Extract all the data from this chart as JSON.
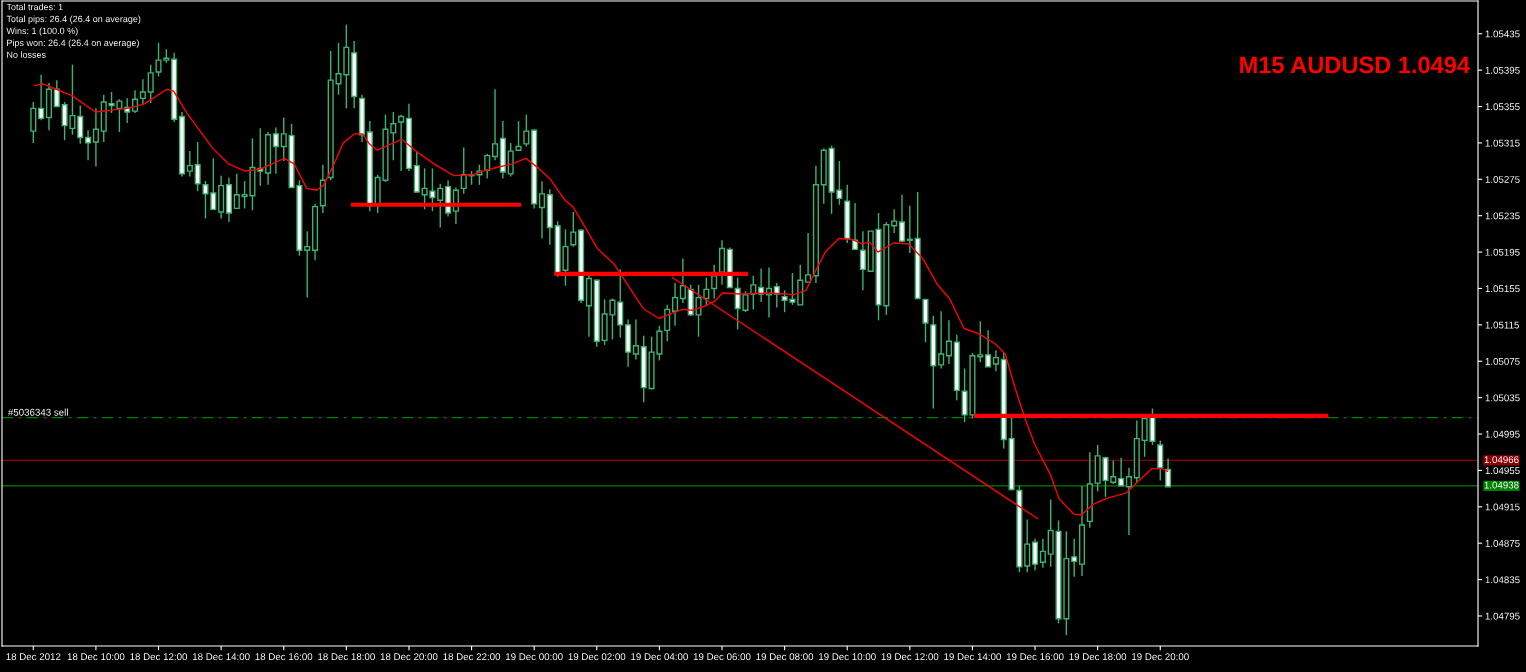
{
  "chart_data": {
    "type": "candlestick",
    "title": "M15 AUDUSD 1.0494",
    "annotations": [
      "Total trades: 1",
      "Total pips: 26.4 (26.4 on average)",
      "Wins: 1 (100.0 %)",
      "Pips won: 26.4 (26.4 on average)",
      "No losses"
    ],
    "color": "#3cb371",
    "x": [
      "2012-12-18T08:00",
      "2012-12-18T08:15",
      "2012-12-18T08:30",
      "2012-12-18T08:45",
      "2012-12-18T09:00",
      "2012-12-18T09:15",
      "2012-12-18T09:30",
      "2012-12-18T09:45",
      "2012-12-18T10:00",
      "2012-12-18T10:15",
      "2012-12-18T10:30",
      "2012-12-18T10:45",
      "2012-12-18T11:00",
      "2012-12-18T11:15",
      "2012-12-18T11:30",
      "2012-12-18T11:45",
      "2012-12-18T12:00",
      "2012-12-18T12:15",
      "2012-12-18T12:30",
      "2012-12-18T12:45",
      "2012-12-18T13:00",
      "2012-12-18T13:15",
      "2012-12-18T13:30",
      "2012-12-18T13:45",
      "2012-12-18T14:00",
      "2012-12-18T14:15",
      "2012-12-18T14:30",
      "2012-12-18T14:45",
      "2012-12-18T15:00",
      "2012-12-18T15:15",
      "2012-12-18T15:30",
      "2012-12-18T15:45",
      "2012-12-18T16:00",
      "2012-12-18T16:15",
      "2012-12-18T16:30",
      "2012-12-18T16:45",
      "2012-12-18T17:00",
      "2012-12-18T17:15",
      "2012-12-18T17:30",
      "2012-12-18T17:45",
      "2012-12-18T18:00",
      "2012-12-18T18:15",
      "2012-12-18T18:30",
      "2012-12-18T18:45",
      "2012-12-18T19:00",
      "2012-12-18T19:15",
      "2012-12-18T19:30",
      "2012-12-18T19:45",
      "2012-12-18T20:00",
      "2012-12-18T20:15",
      "2012-12-18T20:30",
      "2012-12-18T20:45",
      "2012-12-18T21:00",
      "2012-12-18T21:15",
      "2012-12-18T21:30",
      "2012-12-18T21:45",
      "2012-12-18T22:00",
      "2012-12-18T22:15",
      "2012-12-18T22:30",
      "2012-12-18T22:45",
      "2012-12-18T23:00",
      "2012-12-18T23:15",
      "2012-12-18T23:30",
      "2012-12-18T23:45",
      "2012-12-19T00:00",
      "2012-12-19T00:15",
      "2012-12-19T00:30",
      "2012-12-19T00:45",
      "2012-12-19T01:00",
      "2012-12-19T01:15",
      "2012-12-19T01:30",
      "2012-12-19T01:45",
      "2012-12-19T02:00",
      "2012-12-19T02:15",
      "2012-12-19T02:30",
      "2012-12-19T02:45",
      "2012-12-19T03:00",
      "2012-12-19T03:15",
      "2012-12-19T03:30",
      "2012-12-19T03:45",
      "2012-12-19T04:00",
      "2012-12-19T04:15",
      "2012-12-19T04:30",
      "2012-12-19T04:45",
      "2012-12-19T05:00",
      "2012-12-19T05:15",
      "2012-12-19T05:30",
      "2012-12-19T05:45",
      "2012-12-19T06:00",
      "2012-12-19T06:15",
      "2012-12-19T06:30",
      "2012-12-19T06:45",
      "2012-12-19T07:00",
      "2012-12-19T07:15",
      "2012-12-19T07:30",
      "2012-12-19T07:45",
      "2012-12-19T08:00",
      "2012-12-19T08:15",
      "2012-12-19T08:30",
      "2012-12-19T08:45",
      "2012-12-19T09:00",
      "2012-12-19T09:15",
      "2012-12-19T09:30",
      "2012-12-19T09:45",
      "2012-12-19T10:00",
      "2012-12-19T10:15",
      "2012-12-19T10:30",
      "2012-12-19T10:45",
      "2012-12-19T11:00",
      "2012-12-19T11:15",
      "2012-12-19T11:30",
      "2012-12-19T11:45",
      "2012-12-19T12:00",
      "2012-12-19T12:15",
      "2012-12-19T12:30",
      "2012-12-19T12:45",
      "2012-12-19T13:00",
      "2012-12-19T13:15",
      "2012-12-19T13:30",
      "2012-12-19T13:45",
      "2012-12-19T14:00",
      "2012-12-19T14:15",
      "2012-12-19T14:30",
      "2012-12-19T14:45",
      "2012-12-19T15:00",
      "2012-12-19T15:15",
      "2012-12-19T15:30",
      "2012-12-19T15:45",
      "2012-12-19T16:00",
      "2012-12-19T16:15",
      "2012-12-19T16:30",
      "2012-12-19T16:45",
      "2012-12-19T17:00",
      "2012-12-19T17:15",
      "2012-12-19T17:30",
      "2012-12-19T17:45",
      "2012-12-19T18:00",
      "2012-12-19T18:15",
      "2012-12-19T18:30",
      "2012-12-19T18:45",
      "2012-12-19T19:00",
      "2012-12-19T19:15",
      "2012-12-19T19:30",
      "2012-12-19T19:45",
      "2012-12-19T20:00",
      "2012-12-19T20:15"
    ],
    "ohlc": [
      [
        1.05328,
        1.0536,
        1.05315,
        1.05353
      ],
      [
        1.05353,
        1.0539,
        1.0534,
        1.05342
      ],
      [
        1.05343,
        1.05381,
        1.05329,
        1.05374
      ],
      [
        1.05374,
        1.05384,
        1.05355,
        1.05355
      ],
      [
        1.05357,
        1.0536,
        1.05318,
        1.05334
      ],
      [
        1.05331,
        1.05401,
        1.05324,
        1.05345
      ],
      [
        1.05344,
        1.05356,
        1.05314,
        1.05321
      ],
      [
        1.05321,
        1.05329,
        1.05296,
        1.05315
      ],
      [
        1.05316,
        1.05353,
        1.05289,
        1.0533
      ],
      [
        1.05328,
        1.05368,
        1.05316,
        1.0536
      ],
      [
        1.05358,
        1.05371,
        1.05348,
        1.05356
      ],
      [
        1.05353,
        1.05363,
        1.05327,
        1.05361
      ],
      [
        1.05354,
        1.05364,
        1.05337,
        1.05349
      ],
      [
        1.0535,
        1.05373,
        1.05348,
        1.05363
      ],
      [
        1.05364,
        1.05385,
        1.05357,
        1.05371
      ],
      [
        1.05371,
        1.05401,
        1.05359,
        1.05392
      ],
      [
        1.05393,
        1.05425,
        1.05388,
        1.05406
      ],
      [
        1.05406,
        1.05418,
        1.05403,
        1.05408
      ],
      [
        1.05407,
        1.05414,
        1.05338,
        1.05341
      ],
      [
        1.05344,
        1.05349,
        1.05278,
        1.05281
      ],
      [
        1.05284,
        1.05306,
        1.05278,
        1.0529
      ],
      [
        1.05291,
        1.05316,
        1.05262,
        1.0527
      ],
      [
        1.05269,
        1.05273,
        1.05232,
        1.05259
      ],
      [
        1.0526,
        1.05298,
        1.05241,
        1.05242
      ],
      [
        1.05239,
        1.05279,
        1.05232,
        1.05268
      ],
      [
        1.05269,
        1.05277,
        1.05228,
        1.05238
      ],
      [
        1.05243,
        1.05281,
        1.05243,
        1.05258
      ],
      [
        1.05256,
        1.05273,
        1.05243,
        1.05258
      ],
      [
        1.05257,
        1.0532,
        1.05241,
        1.05288
      ],
      [
        1.05287,
        1.05331,
        1.05268,
        1.05284
      ],
      [
        1.05282,
        1.05327,
        1.05269,
        1.05324
      ],
      [
        1.05325,
        1.05332,
        1.05281,
        1.05311
      ],
      [
        1.05311,
        1.05343,
        1.05295,
        1.05325
      ],
      [
        1.05323,
        1.05336,
        1.05266,
        1.05266
      ],
      [
        1.05268,
        1.05274,
        1.05191,
        1.05197
      ],
      [
        1.05197,
        1.05218,
        1.05145,
        1.05201
      ],
      [
        1.05197,
        1.05248,
        1.05186,
        1.05245
      ],
      [
        1.05246,
        1.05291,
        1.05238,
        1.05274
      ],
      [
        1.05277,
        1.05416,
        1.05274,
        1.05384
      ],
      [
        1.0538,
        1.05425,
        1.05368,
        1.05391
      ],
      [
        1.0539,
        1.05445,
        1.05353,
        1.0542
      ],
      [
        1.05414,
        1.05427,
        1.05353,
        1.05366
      ],
      [
        1.05364,
        1.05368,
        1.05316,
        1.05324
      ],
      [
        1.05327,
        1.05339,
        1.0524,
        1.05246
      ],
      [
        1.05248,
        1.0528,
        1.05238,
        1.05277
      ],
      [
        1.05274,
        1.05346,
        1.05272,
        1.0533
      ],
      [
        1.05326,
        1.05349,
        1.05296,
        1.05336
      ],
      [
        1.05338,
        1.05346,
        1.05284,
        1.05344
      ],
      [
        1.05342,
        1.05358,
        1.05284,
        1.05287
      ],
      [
        1.0529,
        1.05305,
        1.05261,
        1.05261
      ],
      [
        1.05258,
        1.05287,
        1.05242,
        1.05265
      ],
      [
        1.05262,
        1.05287,
        1.0524,
        1.05255
      ],
      [
        1.05252,
        1.0527,
        1.05222,
        1.05265
      ],
      [
        1.05267,
        1.05274,
        1.05234,
        1.05238
      ],
      [
        1.0524,
        1.05266,
        1.05226,
        1.05263
      ],
      [
        1.05265,
        1.0531,
        1.05259,
        1.0528
      ],
      [
        1.0528,
        1.05284,
        1.05269,
        1.05279
      ],
      [
        1.0528,
        1.05291,
        1.05269,
        1.05284
      ],
      [
        1.05285,
        1.05303,
        1.05276,
        1.05301
      ],
      [
        1.053,
        1.05374,
        1.05296,
        1.05314
      ],
      [
        1.0532,
        1.05339,
        1.05276,
        1.05283
      ],
      [
        1.05281,
        1.05315,
        1.05278,
        1.05306
      ],
      [
        1.05307,
        1.05339,
        1.05306,
        1.05311
      ],
      [
        1.05314,
        1.05346,
        1.05311,
        1.05328
      ],
      [
        1.05329,
        1.0533,
        1.05243,
        1.05248
      ],
      [
        1.05244,
        1.05273,
        1.0521,
        1.05259
      ],
      [
        1.05258,
        1.05264,
        1.05203,
        1.05222
      ],
      [
        1.05224,
        1.05229,
        1.05168,
        1.05171
      ],
      [
        1.05175,
        1.0522,
        1.05158,
        1.05201
      ],
      [
        1.05203,
        1.05239,
        1.05201,
        1.05217
      ],
      [
        1.05219,
        1.0522,
        1.05139,
        1.05142
      ],
      [
        1.05136,
        1.0517,
        1.05102,
        1.05166
      ],
      [
        1.05164,
        1.05165,
        1.05091,
        1.05097
      ],
      [
        1.05098,
        1.05143,
        1.05093,
        1.05127
      ],
      [
        1.05126,
        1.05144,
        1.05099,
        1.05142
      ],
      [
        1.0514,
        1.05176,
        1.05101,
        1.05115
      ],
      [
        1.05115,
        1.05121,
        1.05069,
        1.05085
      ],
      [
        1.05083,
        1.05121,
        1.05077,
        1.05092
      ],
      [
        1.05091,
        1.05103,
        1.0503,
        1.05046
      ],
      [
        1.05045,
        1.05102,
        1.05044,
        1.05085
      ],
      [
        1.05083,
        1.05114,
        1.05076,
        1.05108
      ],
      [
        1.05109,
        1.05137,
        1.05097,
        1.05132
      ],
      [
        1.0513,
        1.05161,
        1.05114,
        1.05145
      ],
      [
        1.05144,
        1.05188,
        1.05139,
        1.05158
      ],
      [
        1.05154,
        1.05159,
        1.05125,
        1.05126
      ],
      [
        1.05126,
        1.05159,
        1.05102,
        1.05145
      ],
      [
        1.05144,
        1.05167,
        1.05137,
        1.05154
      ],
      [
        1.05155,
        1.05181,
        1.05144,
        1.05169
      ],
      [
        1.05173,
        1.05208,
        1.05159,
        1.05199
      ],
      [
        1.05198,
        1.052,
        1.05156,
        1.05156
      ],
      [
        1.05155,
        1.05167,
        1.0511,
        1.05133
      ],
      [
        1.05131,
        1.05152,
        1.05129,
        1.05148
      ],
      [
        1.05149,
        1.05169,
        1.05132,
        1.05159
      ],
      [
        1.05156,
        1.05177,
        1.0514,
        1.05149
      ],
      [
        1.05148,
        1.05178,
        1.05123,
        1.05155
      ],
      [
        1.05157,
        1.05161,
        1.05134,
        1.05149
      ],
      [
        1.05146,
        1.05153,
        1.05129,
        1.05142
      ],
      [
        1.05143,
        1.05172,
        1.05137,
        1.0514
      ],
      [
        1.05137,
        1.05181,
        1.05137,
        1.05164
      ],
      [
        1.05162,
        1.05216,
        1.05162,
        1.0517
      ],
      [
        1.05169,
        1.0529,
        1.05161,
        1.05269
      ],
      [
        1.05269,
        1.05309,
        1.05248,
        1.05307
      ],
      [
        1.05309,
        1.05312,
        1.05237,
        1.05261
      ],
      [
        1.05263,
        1.05295,
        1.05247,
        1.05254
      ],
      [
        1.05251,
        1.05269,
        1.05205,
        1.0521
      ],
      [
        1.05208,
        1.05249,
        1.05197,
        1.05198
      ],
      [
        1.05197,
        1.05218,
        1.05153,
        1.05176
      ],
      [
        1.05174,
        1.05218,
        1.05174,
        1.05218
      ],
      [
        1.0522,
        1.05238,
        1.0512,
        1.05137
      ],
      [
        1.05136,
        1.05228,
        1.05126,
        1.05225
      ],
      [
        1.05224,
        1.05242,
        1.05216,
        1.05229
      ],
      [
        1.05228,
        1.05258,
        1.05206,
        1.05207
      ],
      [
        1.05208,
        1.05246,
        1.05194,
        1.05209
      ],
      [
        1.0521,
        1.05261,
        1.05144,
        1.05144
      ],
      [
        1.05143,
        1.05143,
        1.05096,
        1.05117
      ],
      [
        1.05115,
        1.05125,
        1.05023,
        1.0507
      ],
      [
        1.05071,
        1.0513,
        1.05067,
        1.05083
      ],
      [
        1.05081,
        1.0512,
        1.05072,
        1.05097
      ],
      [
        1.05096,
        1.05104,
        1.05032,
        1.05043
      ],
      [
        1.05042,
        1.05067,
        1.05008,
        1.05016
      ],
      [
        1.05016,
        1.05084,
        1.05012,
        1.05081
      ],
      [
        1.0508,
        1.05119,
        1.05074,
        1.05082
      ],
      [
        1.05082,
        1.05109,
        1.05069,
        1.05069
      ],
      [
        1.05072,
        1.05087,
        1.05064,
        1.05079
      ],
      [
        1.05077,
        1.05084,
        1.04979,
        1.04989
      ],
      [
        1.0499,
        1.05015,
        1.04933,
        1.04934
      ],
      [
        1.04933,
        1.04938,
        1.04843,
        1.04849
      ],
      [
        1.0485,
        1.04901,
        1.04843,
        1.04874
      ],
      [
        1.04876,
        1.0488,
        1.04845,
        1.04852
      ],
      [
        1.04854,
        1.0488,
        1.04848,
        1.04866
      ],
      [
        1.04863,
        1.04923,
        1.04849,
        1.04889
      ],
      [
        1.04888,
        1.049,
        1.04787,
        1.04792
      ],
      [
        1.04792,
        1.04888,
        1.04774,
        1.04858
      ],
      [
        1.0486,
        1.0488,
        1.04838,
        1.04855
      ],
      [
        1.04852,
        1.04938,
        1.04839,
        1.04895
      ],
      [
        1.04899,
        1.04975,
        1.04892,
        1.0494
      ],
      [
        1.04941,
        1.04983,
        1.04932,
        1.04971
      ],
      [
        1.04969,
        1.0497,
        1.04926,
        1.04944
      ],
      [
        1.04942,
        1.04966,
        1.0494,
        1.04948
      ],
      [
        1.04946,
        1.04969,
        1.04938,
        1.04938
      ],
      [
        1.04937,
        1.04958,
        1.04884,
        1.04948
      ],
      [
        1.04947,
        1.0501,
        1.04942,
        1.0499
      ],
      [
        1.04988,
        1.05012,
        1.0497,
        1.05012
      ],
      [
        1.05013,
        1.05023,
        1.04983,
        1.04987
      ],
      [
        1.04983,
        1.04988,
        1.04944,
        1.04958
      ],
      [
        1.04956,
        1.04968,
        1.04937,
        1.04937
      ]
    ],
    "series": [
      {
        "type": "line",
        "color": "#ff0000",
        "x": [
          "2012-12-18T08:03",
          "2012-12-18T08:18",
          "2012-12-18T08:44",
          "2012-12-18T09:14",
          "2012-12-18T09:59",
          "2012-12-18T10:29",
          "2012-12-18T11:01",
          "2012-12-18T11:33",
          "2012-12-18T12:16",
          "2012-12-18T12:29",
          "2012-12-18T12:54",
          "2012-12-18T13:44",
          "2012-12-18T14:14",
          "2012-12-18T14:46",
          "2012-12-18T15:14",
          "2012-12-18T16:01",
          "2012-12-18T16:20",
          "2012-12-18T16:44",
          "2012-12-18T17:03",
          "2012-12-18T17:16",
          "2012-12-18T17:35",
          "2012-12-18T17:54",
          "2012-12-18T18:16",
          "2012-12-18T18:31",
          "2012-12-18T18:44",
          "2012-12-18T18:59",
          "2012-12-18T19:46",
          "2012-12-18T20:18",
          "2012-12-18T20:48",
          "2012-12-18T21:26",
          "2012-12-18T22:03",
          "2012-12-18T22:22",
          "2012-12-18T22:48",
          "2012-12-18T23:18",
          "2012-12-18T23:44",
          "2012-12-19T00:09",
          "2012-12-19T00:31",
          "2012-12-19T00:59",
          "2012-12-19T01:14",
          "2012-12-19T01:29",
          "2012-12-19T02:01",
          "2012-12-19T02:33",
          "2012-12-19T02:58",
          "2012-12-19T03:29",
          "2012-12-19T03:59",
          "2012-12-19T04:25",
          "2012-12-19T04:44",
          "2012-12-19T05:03",
          "2012-12-19T05:28",
          "2012-12-19T05:46",
          "2012-12-19T06:01",
          "2012-12-19T06:37",
          "2012-12-19T07:25",
          "2012-12-19T08:03",
          "2012-12-19T08:16",
          "2012-12-19T08:41",
          "2012-12-19T08:59",
          "2012-12-19T09:19",
          "2012-12-19T09:44",
          "2012-12-19T10:09",
          "2012-12-19T10:28",
          "2012-12-19T10:43",
          "2012-12-19T10:59",
          "2012-12-19T11:29",
          "2012-12-19T11:58",
          "2012-12-19T12:26",
          "2012-12-19T12:52",
          "2012-12-19T13:16",
          "2012-12-19T13:44",
          "2012-12-19T14:13",
          "2012-12-19T14:44",
          "2012-12-19T15:03",
          "2012-12-19T15:22",
          "2012-12-19T15:41",
          "2012-12-19T15:59",
          "2012-12-19T16:29",
          "2012-12-19T16:46",
          "2012-12-19T17:14",
          "2012-12-19T17:29",
          "2012-12-19T17:52",
          "2012-12-19T18:16",
          "2012-12-19T18:54",
          "2012-12-19T19:18",
          "2012-12-19T19:44",
          "2012-12-19T20:03",
          "2012-12-19T20:14"
        ],
        "values": [
          1.05378,
          1.0538,
          1.05374,
          1.05367,
          1.05349,
          1.05351,
          1.05353,
          1.05358,
          1.05374,
          1.05372,
          1.05348,
          1.05309,
          1.05292,
          1.05284,
          1.05286,
          1.05298,
          1.05292,
          1.05265,
          1.05263,
          1.05268,
          1.0529,
          1.05315,
          1.05325,
          1.05325,
          1.05314,
          1.05307,
          1.05319,
          1.05304,
          1.05292,
          1.05279,
          1.0528,
          1.05284,
          1.05288,
          1.05292,
          1.05298,
          1.05287,
          1.05275,
          1.05252,
          1.05245,
          1.05231,
          1.05199,
          1.05182,
          1.0516,
          1.05133,
          1.05122,
          1.05128,
          1.05132,
          1.05131,
          1.05136,
          1.05141,
          1.0515,
          1.05149,
          1.0515,
          1.05149,
          1.05148,
          1.05153,
          1.05174,
          1.05196,
          1.0521,
          1.05209,
          1.05204,
          1.05206,
          1.05195,
          1.05205,
          1.05204,
          1.05187,
          1.0516,
          1.05144,
          1.05111,
          1.05105,
          1.05094,
          1.05083,
          1.05045,
          1.05012,
          1.04984,
          1.04951,
          1.04924,
          1.04907,
          1.04906,
          1.04918,
          1.04924,
          1.0493,
          1.04943,
          1.04957,
          1.04957,
          1.04954
        ]
      },
      {
        "type": "line",
        "color": "#ff0000",
        "x": [
          "2012-12-18T18:13",
          "2012-12-18T23:31"
        ],
        "values": [
          1.05247,
          1.05247
        ]
      },
      {
        "type": "line",
        "color": "#ff0000",
        "x": [
          "2012-12-19T00:43",
          "2012-12-19T06:46"
        ],
        "values": [
          1.05171,
          1.05171
        ]
      },
      {
        "type": "line",
        "color": "#ff0000",
        "x": [
          "2012-12-19T14:07",
          "2012-12-20T01:18"
        ],
        "values": [
          1.05015,
          1.05015
        ]
      },
      {
        "type": "line",
        "color": "#ff0000",
        "x": [
          "2012-12-19T04:25",
          "2012-12-19T16:05"
        ],
        "values": [
          1.05167,
          1.04902
        ]
      }
    ],
    "ref_lines": [
      {
        "axis": "y",
        "value": 1.05013,
        "label": "#5036343 sell",
        "color": "#008000",
        "line_style": "dashed"
      },
      {
        "axis": "y",
        "value": 1.04966,
        "label": "1.04966",
        "color": "#8b0000"
      },
      {
        "axis": "y",
        "value": 1.04938,
        "label": "1.04938",
        "color": "#008000"
      }
    ],
    "xlim": [
      "2012-12-18T07:00",
      "2012-12-20T06:09"
    ],
    "xticks": [
      {
        "value": "2012-12-18T08:00",
        "label": "18 Dec 2012"
      },
      {
        "value": "2012-12-18T10:00",
        "label": "18 Dec 10:00"
      },
      {
        "value": "2012-12-18T12:00",
        "label": "18 Dec 12:00"
      },
      {
        "value": "2012-12-18T14:00",
        "label": "18 Dec 14:00"
      },
      {
        "value": "2012-12-18T16:00",
        "label": "18 Dec 16:00"
      },
      {
        "value": "2012-12-18T18:00",
        "label": "18 Dec 18:00"
      },
      {
        "value": "2012-12-18T20:00",
        "label": "18 Dec 20:00"
      },
      {
        "value": "2012-12-18T22:00",
        "label": "18 Dec 22:00"
      },
      {
        "value": "2012-12-19T00:00",
        "label": "19 Dec 00:00"
      },
      {
        "value": "2012-12-19T02:00",
        "label": "19 Dec 02:00"
      },
      {
        "value": "2012-12-19T04:00",
        "label": "19 Dec 04:00"
      },
      {
        "value": "2012-12-19T06:00",
        "label": "19 Dec 06:00"
      },
      {
        "value": "2012-12-19T08:00",
        "label": "19 Dec 08:00"
      },
      {
        "value": "2012-12-19T10:00",
        "label": "19 Dec 10:00"
      },
      {
        "value": "2012-12-19T12:00",
        "label": "19 Dec 12:00"
      },
      {
        "value": "2012-12-19T14:00",
        "label": "19 Dec 14:00"
      },
      {
        "value": "2012-12-19T16:00",
        "label": "19 Dec 16:00"
      },
      {
        "value": "2012-12-19T18:00",
        "label": "19 Dec 18:00"
      },
      {
        "value": "2012-12-19T20:00",
        "label": "19 Dec 20:00"
      }
    ],
    "ylim": [
      1.04762,
      1.05471
    ],
    "yticks": [
      1.05435,
      1.05395,
      1.05355,
      1.05315,
      1.05275,
      1.05235,
      1.05195,
      1.05155,
      1.05115,
      1.05075,
      1.05035,
      1.04995,
      1.04955,
      1.04915,
      1.04875,
      1.04835,
      1.04795
    ],
    "grid": false
  }
}
